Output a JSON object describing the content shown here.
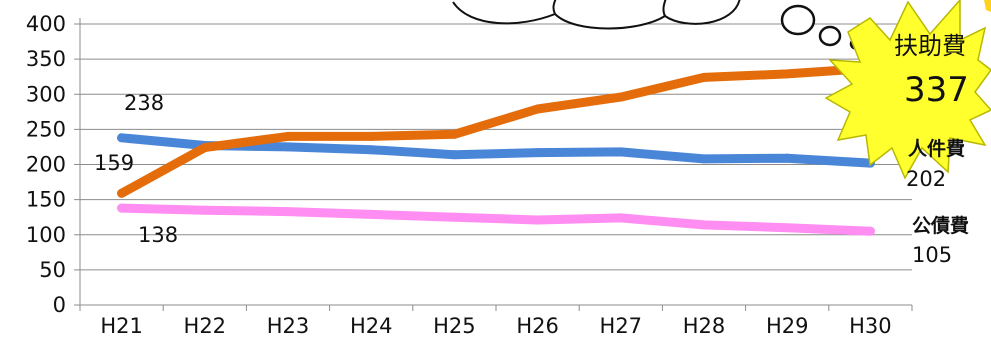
{
  "chart_data": {
    "type": "line",
    "categories": [
      "H21",
      "H22",
      "H23",
      "H24",
      "H25",
      "H26",
      "H27",
      "H28",
      "H29",
      "H30"
    ],
    "ylim": [
      0,
      400
    ],
    "yticks": [
      0,
      50,
      100,
      150,
      200,
      250,
      300,
      350,
      400
    ],
    "grid": true,
    "series": [
      {
        "name": "扶助費",
        "color": "#E46C0A",
        "values": [
          159,
          224,
          240,
          240,
          243,
          279,
          296,
          324,
          329,
          337
        ],
        "start_label": "159",
        "end_label": "337"
      },
      {
        "name": "人件費",
        "color": "#4A86D8",
        "values": [
          238,
          227,
          225,
          221,
          214,
          217,
          218,
          208,
          209,
          202
        ],
        "start_label": "238",
        "end_label": "202"
      },
      {
        "name": "公債費",
        "color": "#FF8DF2",
        "values": [
          138,
          135,
          133,
          129,
          125,
          121,
          124,
          114,
          110,
          105
        ],
        "start_label": "138",
        "end_label": "105"
      }
    ]
  }
}
